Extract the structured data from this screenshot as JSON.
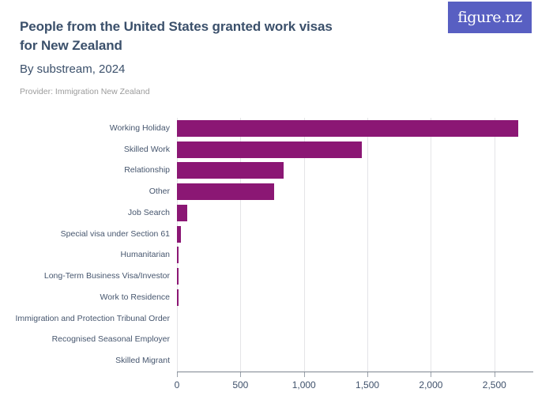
{
  "header": {
    "title": "People from the United States granted work visas for New Zealand",
    "subtitle": "By substream, 2024",
    "provider": "Provider: Immigration New Zealand"
  },
  "logo": {
    "text": "figure.nz",
    "bg_color": "#585fc2",
    "text_color": "#ffffff"
  },
  "colors": {
    "bar": "#8b1774",
    "title_text": "#3b506b",
    "category_label": "#46566e",
    "tick_label": "#3f516b",
    "gridline": "#e4e4e7",
    "axis_line": "#7d8590",
    "provider_text": "#9b9b9b"
  },
  "chart_data": {
    "type": "bar",
    "orientation": "horizontal",
    "title": "People from the United States granted work visas for New Zealand",
    "subtitle": "By substream, 2024",
    "source": "Provider: Immigration New Zealand",
    "categories": [
      "Working Holiday",
      "Skilled Work",
      "Relationship",
      "Other",
      "Job Search",
      "Special visa under Section 61",
      "Humanitarian",
      "Long-Term Business Visa/Investor",
      "Work to Residence",
      "Immigration and Protection Tribunal Order",
      "Recognised Seasonal Employer",
      "Skilled Migrant"
    ],
    "values": [
      2690,
      1455,
      840,
      765,
      80,
      30,
      15,
      10,
      10,
      0,
      0,
      0
    ],
    "xlabel": "",
    "ylabel": "",
    "xlim": [
      0,
      2800
    ],
    "xticks": [
      0,
      500,
      1000,
      1500,
      2000,
      2500
    ],
    "xtick_labels": [
      "0",
      "500",
      "1,000",
      "1,500",
      "2,000",
      "2,500"
    ],
    "grid": true,
    "legend": false
  }
}
